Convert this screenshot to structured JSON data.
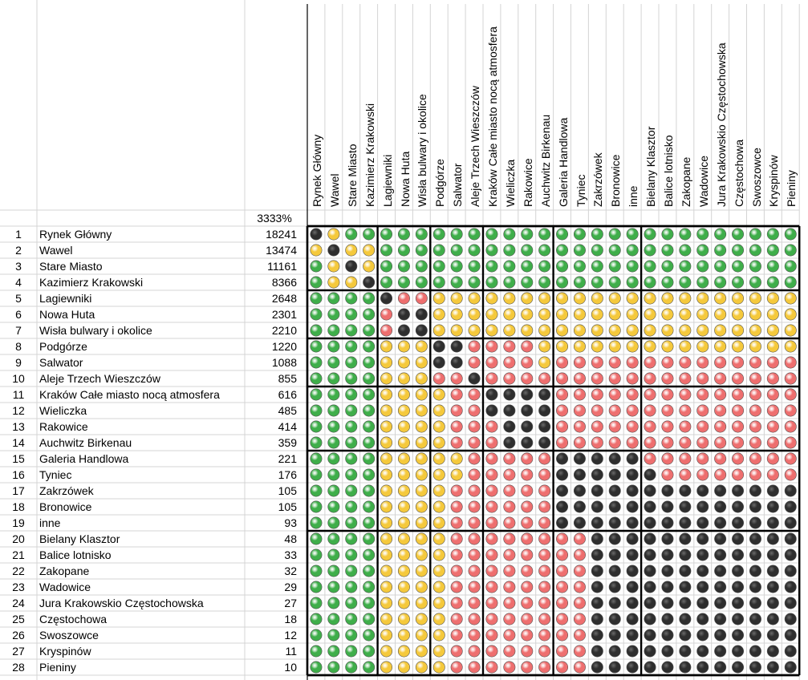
{
  "chart_data": {
    "type": "heatmap",
    "total_label": "3333%",
    "categories": [
      "Rynek Główny",
      "Wawel",
      "Stare Miasto",
      "Kazimierz Krakowski",
      "Lagiewniki",
      "Nowa Huta",
      "Wisła bulwary i okolice",
      "Podgórze",
      "Salwator",
      "Aleje Trzech Wieszczów",
      "Kraków Całe miasto nocą atmosfera",
      "Wieliczka",
      "Rakowice",
      "Auchwitz Birkenau",
      "Galeria Handlowa",
      "Tyniec",
      "Zakrzówek",
      "Bronowice",
      "inne",
      "Bielany Klasztor",
      "Balice lotnisko",
      "Zakopane",
      "Wadowice",
      "Jura Krakowskio Częstochowska",
      "Częstochowa",
      "Swoszowce",
      "Kryspinów",
      "Pieniny"
    ],
    "row_numbers": [
      1,
      2,
      3,
      4,
      5,
      6,
      7,
      8,
      9,
      10,
      11,
      12,
      13,
      14,
      15,
      16,
      17,
      18,
      19,
      20,
      21,
      22,
      23,
      24,
      25,
      26,
      27,
      28
    ],
    "values": [
      18241,
      13474,
      11161,
      8366,
      2648,
      2301,
      2210,
      1220,
      1088,
      855,
      616,
      485,
      414,
      359,
      221,
      176,
      105,
      105,
      93,
      48,
      33,
      32,
      29,
      27,
      18,
      12,
      11,
      10
    ],
    "legend_codes": {
      "K": "black",
      "G": "green",
      "Y": "yellow",
      "R": "red"
    },
    "colors": {
      "K": "#2e2e2e",
      "G": "#3fae4a",
      "Y": "#f5c93c",
      "R": "#ee6f6f"
    },
    "matrix": [
      "KYGGGGGGGGGGGGGGGGGGGGGGGGGG",
      "YKYYGGGGGGGGGGGGGGGGGGGGGGGG",
      "GYKYGGGGGGGGGGGGGGGGGGGGGGGG",
      "GYYKGGGGGGGGGGGGGGGGGGGGGGGG",
      "GGGGKRRYYYYYYYYYYYYYYYYYYYYY",
      "GGGGRKKYYYYYYYYYYYYYYYYYYYYY",
      "GGGGRKKYYYYYYYYYYYYYYYYYYYYY",
      "GGGGYYYKKRRRRYYYYYYYYYYYYYYY",
      "GGGGYYYKKRRRRYRRRRRRRRRRRRRR",
      "GGGGYYYRRKRRRRRRRRRRRRRRRRRR",
      "GGGGYYYYRRKKKKRRRRRRRRRRRRRR",
      "GGGGYYYYRRKKKKRRRRRRRRRRRRRR",
      "GGGGYYYYRRRKKKRRRRRRRRRRRRRR",
      "GGGGYYYYRRRKKKRRRRRRRRRRRRRR",
      "GGGGYYYYYRRRRRKKKKKRRRRRRRRR",
      "GGGGYYYYYRRRRRKKKKKKRRRRRRRR",
      "GGGGYYYYRRRRRRKKKKKKKKKKKKKK",
      "GGGGYYYYRRRRRRKKKKKKKKKKKKKK",
      "GGGGYYYYRRRRRRKKKKKKKKKKKKKK",
      "GGGGYYYYRRRRRRRRKKKKKKKKKKKK",
      "GGGGYYYYRRRRRRRRKKKKKKKKKKKK",
      "GGGGYYYYRRRRRRRRKKKKKKKKKKKK",
      "GGGGYYYYRRRRRRRRKKKKKKKKKKKK",
      "GGGGYYYYRRRRRRRRKKKKKKKKKKKK",
      "GGGGYYYYRRRRRRRRKKKKKKKKKKKK",
      "GGGGYYYYRRRRRRRRKKKKKKKKKKKK",
      "GGGGYYYYRRRRRRRRKKKKKKKKKKKK",
      "GGGGYYYYRRRRRRRRKKKKKKKKKKKK"
    ],
    "blocks": [
      [
        1,
        4
      ],
      [
        5,
        7
      ],
      [
        8,
        10
      ],
      [
        11,
        14
      ],
      [
        15,
        19
      ],
      [
        20,
        28
      ]
    ]
  }
}
